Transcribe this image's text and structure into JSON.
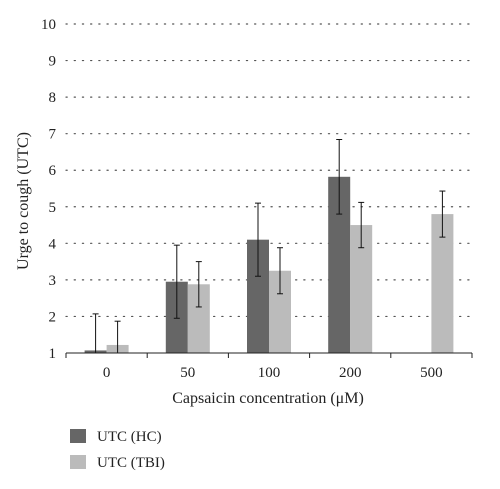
{
  "chart_data": {
    "type": "bar",
    "categories": [
      "0",
      "50",
      "100",
      "200",
      "500"
    ],
    "series": [
      {
        "name": "UTC (HC)",
        "color": "#666666",
        "values": [
          1.07,
          2.95,
          4.1,
          5.82,
          null
        ],
        "error": [
          1.0,
          1.0,
          1.0,
          1.02,
          null
        ]
      },
      {
        "name": "UTC (TBI)",
        "color": "#bbbbbb",
        "values": [
          1.22,
          2.88,
          3.25,
          4.5,
          4.8
        ],
        "error": [
          0.65,
          0.62,
          0.63,
          0.62,
          0.63
        ]
      }
    ],
    "xlabel": "Capsaicin concentration (μM)",
    "ylabel": "Urge to cough (UTC)",
    "ylim": [
      1,
      10
    ],
    "yticks": [
      "1",
      "2",
      "3",
      "4",
      "5",
      "6",
      "7",
      "8",
      "9",
      "10"
    ],
    "grid": "dotted horizontal",
    "legend_position": "bottom-left"
  }
}
